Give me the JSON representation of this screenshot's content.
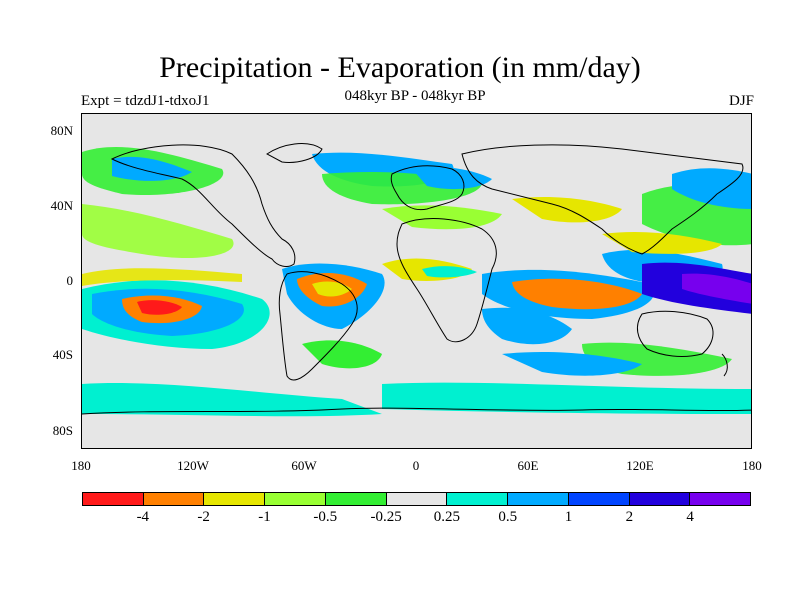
{
  "title": "Precipitation - Evaporation (in mm/day)",
  "subtitle": "048kyr BP - 048kyr BP",
  "left_label": "Expt = tdzdJ1-tdxoJ1",
  "right_label": "DJF",
  "y_ticks": [
    "80N",
    "40N",
    "0",
    "40S",
    "80S"
  ],
  "x_ticks": [
    "180",
    "120W",
    "60W",
    "0",
    "60E",
    "120E",
    "180"
  ],
  "colorbar": {
    "labels": [
      "-4",
      "-2",
      "-1",
      "-0.5",
      "-0.25",
      "0.25",
      "0.5",
      "1",
      "2",
      "4"
    ],
    "colors": [
      "#ff1a1a",
      "#ff8000",
      "#e6e600",
      "#99ff33",
      "#33ee33",
      "#e6e6e6",
      "#00f0d0",
      "#00aaff",
      "#0044ff",
      "#2200dd",
      "#7700ee"
    ]
  }
}
